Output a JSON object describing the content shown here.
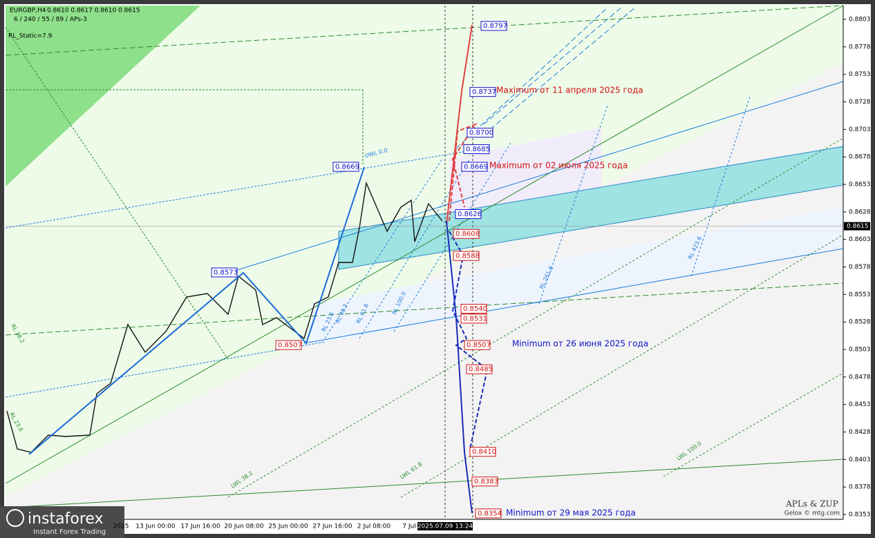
{
  "header": {
    "symbol": "EURGBP,H4",
    "ohlc": "0.8610 0.8617 0.8610 0.8615",
    "settings": "6 / 240 / 55 / 89 / APs-3",
    "rl_static": "RL_Static=7.9"
  },
  "price_axis": {
    "ticks": [
      0.8803,
      0.8778,
      0.8753,
      0.8728,
      0.8703,
      0.8678,
      0.8653,
      0.8628,
      0.8603,
      0.8578,
      0.8553,
      0.8528,
      0.8503,
      0.8478,
      0.8453,
      0.8428,
      0.8403,
      0.8378,
      0.8353
    ],
    "current": 0.8615
  },
  "time_axis": {
    "labels": [
      "2025",
      "13 Jun 00:00",
      "17 Jun 16:00",
      "20 Jun 08:00",
      "25 Jun 00:00",
      "27 Jun 16:00",
      "2 Jul 08:00",
      "7 Jul"
    ],
    "cursor": "2025.07.09 13:24"
  },
  "levels": [
    {
      "price": 0.8797,
      "color": "#1010c8"
    },
    {
      "price": 0.8737,
      "color": "#1010c8"
    },
    {
      "price": {
        "value": 0.87,
        "label": "0.8700"
      },
      "color": "#1010c8"
    },
    {
      "price": 0.8685,
      "color": "#1010c8"
    },
    {
      "price": 0.8669,
      "color": "#1010c8"
    },
    {
      "price": 0.8669,
      "color": "#1010c8"
    },
    {
      "price": 0.8626,
      "color": "#1010c8"
    },
    {
      "price": 0.8573,
      "color": "#1010c8"
    },
    {
      "price": 0.8608,
      "color": "#d01010"
    },
    {
      "price": 0.8588,
      "color": "#d01010"
    },
    {
      "price": {
        "value": 0.854,
        "label": "0.8540"
      },
      "color": "#d01010"
    },
    {
      "price": 0.8531,
      "color": "#d01010"
    },
    {
      "price": 0.8507,
      "color": "#d01010"
    },
    {
      "price": 0.8507,
      "color": "#d01010"
    },
    {
      "price": 0.8485,
      "color": "#d01010"
    },
    {
      "price": {
        "value": 0.841,
        "label": "0.8410"
      },
      "color": "#d01010"
    },
    {
      "price": 0.8383,
      "color": "#d01010"
    },
    {
      "price": 0.8354,
      "color": "#d01010"
    }
  ],
  "annotations": [
    {
      "text": "Maximum от 11 апреля 2025 года",
      "color": "#d01010"
    },
    {
      "text": "Maximum от 02 июля 2025 года",
      "color": "#d01010"
    },
    {
      "text": "Minimum от 26 июня 2025 года",
      "color": "#1010c8"
    },
    {
      "text": "Minimum от 29 мая 2025 года",
      "color": "#1010c8"
    }
  ],
  "line_labels": [
    "UWL 0.0",
    "RL 23.6",
    "RL 38.2",
    "RL 61.8",
    "RL 100.0",
    "RL 261.8",
    "RL 423.6",
    "LWL 38.2",
    "LWL 61.8",
    "LWL 100.0",
    "RL 38.2",
    "RL 23.6"
  ],
  "credits": {
    "title": "APLs & ZUP",
    "author": "Gelox © mtg.com"
  },
  "logo": {
    "name": "instaforex",
    "tagline": "Instant Forex Trading"
  }
}
